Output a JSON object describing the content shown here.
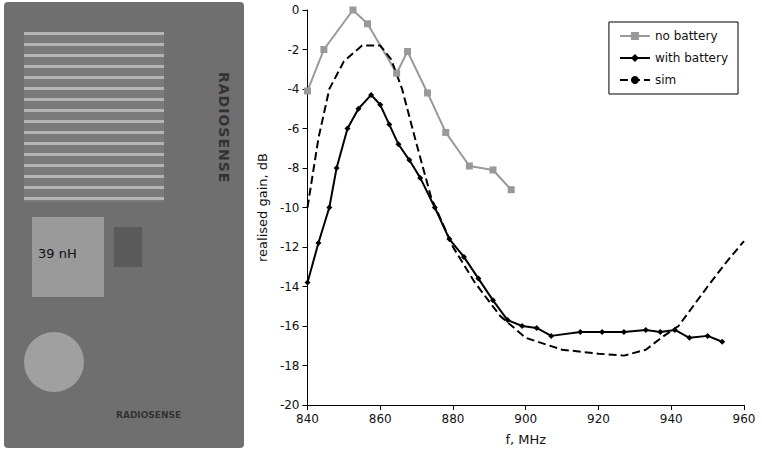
{
  "chart_data": {
    "type": "line",
    "xlabel": "f, MHz",
    "ylabel": "realised gain, dB",
    "xlim": [
      840,
      960
    ],
    "xticks": [
      840,
      860,
      880,
      900,
      920,
      940,
      960
    ],
    "ylim": [
      -20,
      0
    ],
    "yticks": [
      -20,
      -18,
      -16,
      -14,
      -12,
      -10,
      -8,
      -6,
      -4,
      -2,
      0
    ],
    "grid": false,
    "legend": "upper right",
    "series": [
      {
        "name": "no battery",
        "color": "#999999",
        "marker": "square",
        "line_style": "solid",
        "x": [
          840,
          844.5,
          852.5,
          856.5,
          864.5,
          867.5,
          873,
          878,
          884.5,
          891,
          896
        ],
        "values": [
          -4.1,
          -2,
          0,
          -0.7,
          -3.2,
          -2.1,
          -4.2,
          -6.2,
          -7.9,
          -8.1,
          -9.1
        ]
      },
      {
        "name": "with battery",
        "color": "#000000",
        "marker": "diamond",
        "line_style": "solid",
        "x": [
          840,
          843,
          846,
          848,
          851,
          854,
          857.5,
          860,
          862.5,
          865,
          868,
          871,
          875,
          879,
          883,
          887,
          891,
          895,
          899,
          903,
          907,
          915,
          921,
          927,
          933,
          937,
          941,
          945,
          950,
          954
        ],
        "values": [
          -13.8,
          -11.8,
          -10,
          -8,
          -6,
          -5,
          -4.3,
          -4.8,
          -5.8,
          -6.8,
          -7.6,
          -8.5,
          -10,
          -11.6,
          -12.5,
          -13.6,
          -14.7,
          -15.7,
          -16,
          -16.1,
          -16.5,
          -16.3,
          -16.3,
          -16.3,
          -16.2,
          -16.3,
          -16.2,
          -16.6,
          -16.5,
          -16.8
        ]
      },
      {
        "name": "sim",
        "color": "#000000",
        "marker": "none",
        "line_style": "dashed",
        "x": [
          840,
          843,
          846,
          850,
          855,
          860,
          863,
          866,
          870,
          874,
          880,
          886,
          893,
          900,
          910,
          920,
          927,
          933,
          938,
          942,
          946,
          950,
          955,
          960
        ],
        "values": [
          -10,
          -6.5,
          -4,
          -2.6,
          -1.8,
          -1.8,
          -2.5,
          -4,
          -6.8,
          -9.5,
          -12,
          -13.8,
          -15.5,
          -16.6,
          -17.2,
          -17.4,
          -17.5,
          -17.2,
          -16.5,
          -16,
          -15,
          -14,
          -12.8,
          -11.7
        ]
      }
    ]
  },
  "photo": {
    "inductor_label": "39 nH",
    "side_label": "RADIOSENSE",
    "bottom_label": "RADIOSENSE"
  }
}
